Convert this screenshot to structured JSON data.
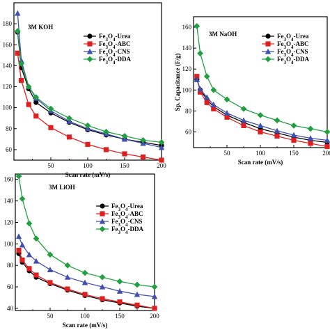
{
  "chart_data": [
    {
      "type": "line",
      "title": "3M KOH",
      "xlabel": "Scan rate (mV/s)",
      "ylabel": "",
      "xlim": [
        0,
        200
      ],
      "ylim": [
        50,
        200
      ],
      "xticks": [
        50,
        100,
        150,
        200
      ],
      "yticks": [
        60,
        80,
        100,
        120,
        140,
        160,
        180
      ],
      "legend_position": "top-right",
      "series": [
        {
          "name": "Fe3O4-Urea",
          "color": "#000000",
          "marker": "circle",
          "x": [
            5,
            10,
            20,
            30,
            50,
            75,
            100,
            125,
            150,
            175,
            200
          ],
          "y": [
            172,
            138,
            118,
            105,
            95,
            86,
            79,
            74,
            70,
            67,
            64
          ]
        },
        {
          "name": "Fe3O4-ABC",
          "color": "#e02020",
          "marker": "square",
          "x": [
            5,
            10,
            20,
            30,
            50,
            75,
            100,
            125,
            150,
            175,
            200
          ],
          "y": [
            152,
            126,
            103,
            92,
            81,
            72,
            65,
            60,
            56,
            53,
            50
          ]
        },
        {
          "name": "Fe3O4-CNS",
          "color": "#4050b0",
          "marker": "triangle",
          "x": [
            5,
            10,
            20,
            30,
            50,
            75,
            100,
            125,
            150,
            175,
            200
          ],
          "y": [
            190,
            145,
            120,
            109,
            97,
            87,
            80,
            75,
            70,
            66,
            62
          ]
        },
        {
          "name": "Fe3O4-DDA",
          "color": "#20a040",
          "marker": "diamond",
          "x": [
            5,
            10,
            20,
            30,
            50,
            75,
            100,
            125,
            150,
            175,
            200
          ],
          "y": [
            173,
            142,
            120,
            110,
            99,
            90,
            83,
            77,
            73,
            69,
            67
          ]
        }
      ]
    },
    {
      "type": "line",
      "title": "3M NaOH",
      "xlabel": "Scan rate (mV/s)",
      "ylabel": "Sp. Capacitance (F/g)",
      "xlim": [
        0,
        200
      ],
      "ylim": [
        45,
        170
      ],
      "xticks": [
        50,
        100,
        150,
        200
      ],
      "yticks": [
        60,
        80,
        100,
        120,
        140,
        160
      ],
      "legend_position": "top-right",
      "series": [
        {
          "name": "Fe3O4-Urea",
          "color": "#000000",
          "marker": "circle",
          "x": [
            5,
            10,
            20,
            30,
            50,
            75,
            100,
            125,
            150,
            175,
            200
          ],
          "y": [
            110,
            100,
            91,
            84,
            76,
            69,
            63,
            59,
            55,
            52,
            50
          ]
        },
        {
          "name": "Fe3O4-ABC",
          "color": "#e02020",
          "marker": "square",
          "x": [
            5,
            10,
            20,
            30,
            50,
            75,
            100,
            125,
            150,
            175,
            200
          ],
          "y": [
            113,
            98,
            88,
            82,
            74,
            66,
            60,
            56,
            52,
            49,
            46
          ]
        },
        {
          "name": "Fe3O4-CNS",
          "color": "#4050b0",
          "marker": "triangle",
          "x": [
            5,
            10,
            20,
            30,
            50,
            75,
            100,
            125,
            150,
            175,
            200
          ],
          "y": [
            110,
            101,
            93,
            86,
            78,
            71,
            66,
            61,
            57,
            54,
            52
          ]
        },
        {
          "name": "Fe3O4-DDA",
          "color": "#20a040",
          "marker": "diamond",
          "x": [
            5,
            10,
            20,
            30,
            50,
            75,
            100,
            125,
            150,
            175,
            200
          ],
          "y": [
            161,
            135,
            113,
            100,
            91,
            82,
            76,
            71,
            66,
            63,
            60
          ]
        }
      ]
    },
    {
      "type": "line",
      "title": "3M LiOH",
      "xlabel": "Scan rate (mV/s)",
      "ylabel": "",
      "xlim": [
        0,
        200
      ],
      "ylim": [
        38,
        165
      ],
      "xticks": [
        50,
        100,
        150,
        200
      ],
      "yticks": [
        40,
        60,
        80,
        100,
        120,
        140,
        160
      ],
      "legend_position": "top-right",
      "series": [
        {
          "name": "Fe3O4-Urea",
          "color": "#000000",
          "marker": "circle",
          "x": [
            5,
            10,
            20,
            30,
            50,
            75,
            100,
            125,
            150,
            175,
            200
          ],
          "y": [
            91,
            83,
            75,
            69,
            63,
            57,
            52,
            48,
            45,
            42,
            40
          ]
        },
        {
          "name": "Fe3O4-ABC",
          "color": "#e02020",
          "marker": "square",
          "x": [
            5,
            10,
            20,
            30,
            50,
            75,
            100,
            125,
            150,
            175,
            200
          ],
          "y": [
            94,
            85,
            77,
            71,
            64,
            58,
            53,
            49,
            46,
            43,
            40
          ]
        },
        {
          "name": "Fe3O4-CNS",
          "color": "#4050b0",
          "marker": "triangle",
          "x": [
            5,
            10,
            20,
            30,
            50,
            75,
            100,
            125,
            150,
            175,
            200
          ],
          "y": [
            107,
            99,
            90,
            84,
            76,
            69,
            64,
            60,
            56,
            53,
            51
          ]
        },
        {
          "name": "Fe3O4-DDA",
          "color": "#20a040",
          "marker": "diamond",
          "x": [
            5,
            10,
            20,
            30,
            50,
            75,
            100,
            125,
            150,
            175,
            200
          ],
          "y": [
            163,
            142,
            119,
            105,
            90,
            80,
            73,
            69,
            65,
            62,
            60
          ]
        }
      ]
    }
  ]
}
